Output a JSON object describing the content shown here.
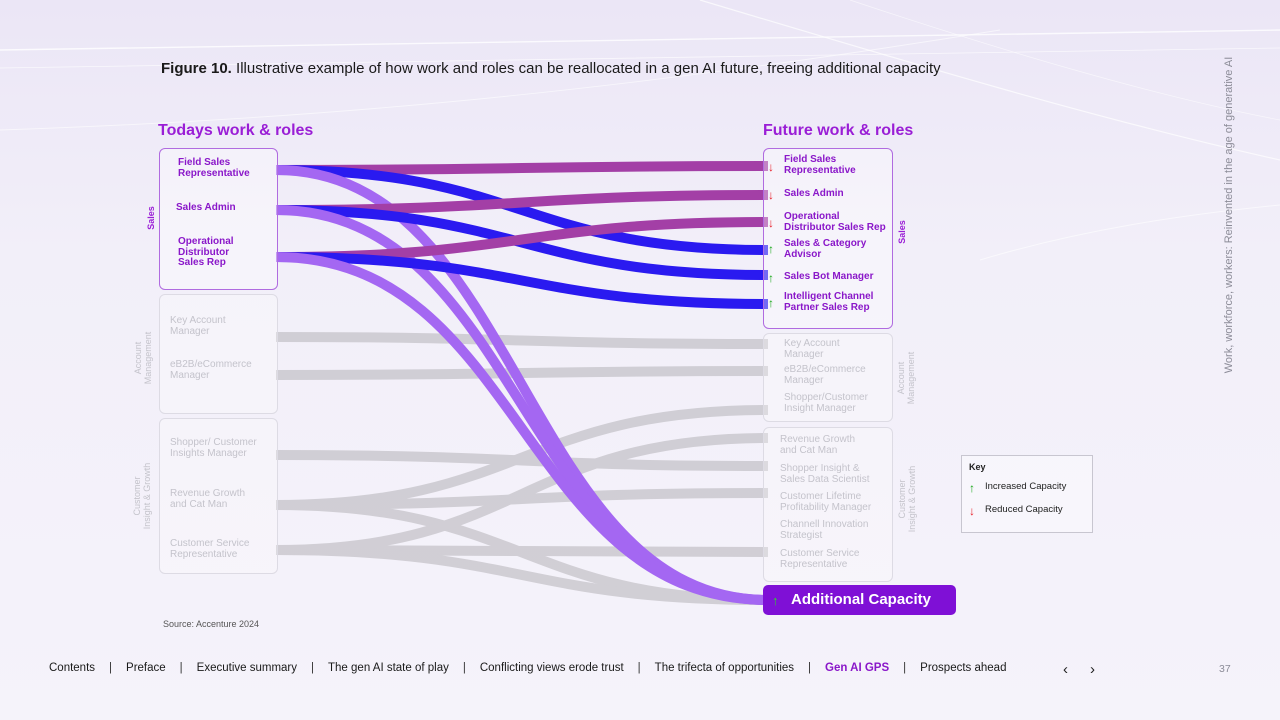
{
  "figure": {
    "label": "Figure 10.",
    "caption": "Illustrative example of how work and roles can be reallocated in a gen AI future, freeing additional capacity"
  },
  "side_title": "Work, workforce, workers: Reinvented in the age of generative AI",
  "left_column": {
    "heading": "Todays work & roles",
    "groups": [
      {
        "name": "Sales",
        "active": true,
        "roles": [
          "Field Sales\nRepresentative",
          "Sales Admin",
          "Operational\nDistributor\nSales Rep"
        ]
      },
      {
        "name": "Account\nManagement",
        "active": false,
        "roles": [
          "Key Account\nManager",
          "eB2B/eCommerce\nManager"
        ]
      },
      {
        "name": "Customer\nInsight & Growth",
        "active": false,
        "roles": [
          "Shopper/ Customer\nInsights Manager",
          "Revenue Growth\nand Cat Man",
          "Customer Service\nRepresentative"
        ]
      }
    ]
  },
  "right_column": {
    "heading": "Future work & roles",
    "groups": [
      {
        "name": "Sales",
        "active": true,
        "roles": [
          {
            "label": "Field Sales\nRepresentative",
            "change": "reduced"
          },
          {
            "label": "Sales Admin",
            "change": "reduced"
          },
          {
            "label": "Operational\nDistributor Sales Rep",
            "change": "reduced"
          },
          {
            "label": "Sales & Category\nAdvisor",
            "change": "increased"
          },
          {
            "label": "Sales Bot Manager",
            "change": "increased"
          },
          {
            "label": "Intelligent Channel\nPartner Sales Rep",
            "change": "increased"
          }
        ]
      },
      {
        "name": "Account\nManagement",
        "active": false,
        "roles": [
          {
            "label": "Key Account\nManager"
          },
          {
            "label": "eB2B/eCommerce\nManager"
          },
          {
            "label": "Shopper/Customer\nInsight Manager"
          }
        ]
      },
      {
        "name": "Customer\nInsight & Growth",
        "active": false,
        "roles": [
          {
            "label": "Revenue Growth\nand Cat Man"
          },
          {
            "label": "Shopper Insight &\nSales Data Scientist"
          },
          {
            "label": "Customer Lifetime\nProfitability Manager"
          },
          {
            "label": "Channell Innovation\nStrategist"
          },
          {
            "label": "Customer Service\nRepresentative"
          }
        ]
      }
    ],
    "additional_capacity": {
      "label": "Additional Capacity",
      "change": "increased"
    }
  },
  "flows": [
    {
      "from": "Field Sales Representative",
      "to": "Field Sales Representative",
      "kind": "retained"
    },
    {
      "from": "Field Sales Representative",
      "to": "Sales & Category Advisor",
      "kind": "new"
    },
    {
      "from": "Field Sales Representative",
      "to": "Additional Capacity",
      "kind": "freed"
    },
    {
      "from": "Sales Admin",
      "to": "Sales Admin",
      "kind": "retained"
    },
    {
      "from": "Sales Admin",
      "to": "Sales Bot Manager",
      "kind": "new"
    },
    {
      "from": "Sales Admin",
      "to": "Additional Capacity",
      "kind": "freed"
    },
    {
      "from": "Operational Distributor Sales Rep",
      "to": "Operational Distributor Sales Rep",
      "kind": "retained"
    },
    {
      "from": "Operational Distributor Sales Rep",
      "to": "Intelligent Channel Partner Sales Rep",
      "kind": "new"
    },
    {
      "from": "Operational Distributor Sales Rep",
      "to": "Additional Capacity",
      "kind": "freed"
    },
    {
      "from": "Key Account Manager",
      "to": "Key Account Manager",
      "kind": "other"
    },
    {
      "from": "eB2B/eCommerce Manager",
      "to": "eB2B/eCommerce Manager",
      "kind": "other"
    },
    {
      "from": "Shopper/ Customer Insights Manager",
      "to": "Shopper Insight & Sales Data Scientist",
      "kind": "other"
    },
    {
      "from": "Revenue Growth and Cat Man",
      "to": "Shopper/Customer Insight Manager",
      "kind": "other"
    },
    {
      "from": "Revenue Growth and Cat Man",
      "to": "Customer Lifetime Profitability Manager",
      "kind": "other"
    },
    {
      "from": "Revenue Growth and Cat Man",
      "to": "Additional Capacity",
      "kind": "other"
    },
    {
      "from": "Customer Service Representative",
      "to": "Customer Service Representative",
      "kind": "other"
    },
    {
      "from": "Customer Service Representative",
      "to": "Revenue Growth and Cat Man",
      "kind": "other"
    },
    {
      "from": "Customer Service Representative",
      "to": "Additional Capacity",
      "kind": "other"
    }
  ],
  "key": {
    "title": "Key",
    "increased_label": "Increased Capacity",
    "reduced_label": "Reduced Capacity"
  },
  "source": "Source: Accenture 2024",
  "nav": {
    "items": [
      "Contents",
      "Preface",
      "Executive summary",
      "The gen AI state of play",
      "Conflicting views erode trust",
      "The trifecta of opportunities",
      "Gen AI GPS",
      "Prospects ahead"
    ],
    "current": "Gen AI GPS",
    "separator": "|",
    "prev_glyph": "‹",
    "next_glyph": "›"
  },
  "page_number": "37",
  "colors": {
    "purple_text": "#8a17c9",
    "retained_flow": "#a33fa6",
    "new_flow": "#2a1af0",
    "freed_flow": "#a467f2",
    "other_flow": "#cbc9cf",
    "increased": "#1aa71a",
    "reduced": "#e8202a",
    "capacity_box": "#7f10d6"
  }
}
